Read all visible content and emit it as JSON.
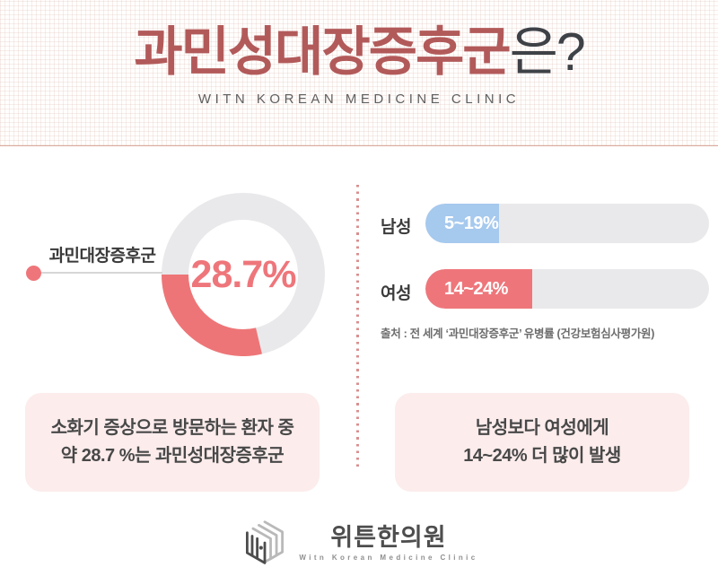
{
  "header": {
    "title_highlight": "과민성대장증후군",
    "title_rest": "은?",
    "subtitle": "WITN KOREAN MEDICINE CLINIC"
  },
  "colors": {
    "title_red": "#b25a5a",
    "accent_pink": "#ee767b",
    "accent_blue": "#a6c9ee",
    "track_gray": "#e9e9eb",
    "box_pink": "#fcecec",
    "divider_red": "#d98f8f"
  },
  "chart_data": [
    {
      "type": "pie",
      "subtype": "donut",
      "label": "과민대장증후군",
      "value_pct": 28.7,
      "rest_pct": 71.3,
      "value_label": "28.7%",
      "colors": {
        "filled": "#ee7577",
        "rest": "#e9e9eb"
      },
      "legend_position": "left-callout"
    },
    {
      "type": "bar",
      "orientation": "horizontal",
      "categories": [
        "남성",
        "여성"
      ],
      "bars": [
        {
          "label": "남성",
          "value_label": "5~19%",
          "fill_pct": 26,
          "color": "#a6c9ee"
        },
        {
          "label": "여성",
          "value_label": "14~24%",
          "fill_pct": 37.5,
          "color": "#ee767b"
        }
      ],
      "source": "출처 : 전 세계 ‘과민대장증후군’ 유병률 (건강보험심사평가원)"
    }
  ],
  "notes": {
    "left_line1": "소화기 증상으로 방문하는 환자 중",
    "left_line2": "약 28.7 %는 과민성대장증후군",
    "right_line1": "남성보다 여성에게",
    "right_line2": "14~24% 더 많이 발생"
  },
  "footer": {
    "clinic_name": "위튼한의원",
    "clinic_subtitle": "Witn Korean Medicine Clinic"
  }
}
